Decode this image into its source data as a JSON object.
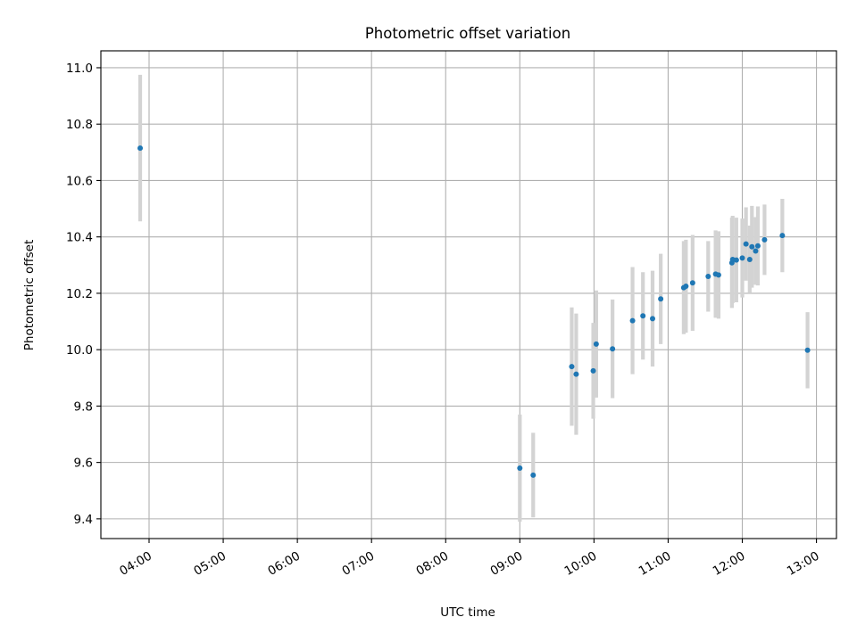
{
  "chart_data": {
    "type": "scatter",
    "title": "Photometric offset variation",
    "xlabel": "UTC time",
    "ylabel": "Photometric offset",
    "grid": true,
    "x_unit": "hours UTC",
    "xlim": [
      3.35,
      13.27
    ],
    "ylim": [
      9.33,
      11.06
    ],
    "xticks": [
      4,
      5,
      6,
      7,
      8,
      9,
      10,
      11,
      12,
      13
    ],
    "xtick_labels": [
      "04:00",
      "05:00",
      "06:00",
      "07:00",
      "08:00",
      "09:00",
      "10:00",
      "11:00",
      "12:00",
      "13:00"
    ],
    "yticks": [
      9.4,
      9.6,
      9.8,
      10.0,
      10.2,
      10.4,
      10.6,
      10.8,
      11.0
    ],
    "ytick_labels": [
      "9.4",
      "9.6",
      "9.8",
      "10.0",
      "10.2",
      "10.4",
      "10.6",
      "10.8",
      "11.0"
    ],
    "colors": {
      "point": "#1f77b4",
      "errorbar": "#d3d3d3",
      "grid": "#b0b0b0",
      "axis": "#000000"
    },
    "series": [
      {
        "name": "Photometric offset",
        "points": [
          {
            "x": 3.88,
            "y": 10.715,
            "err": 0.26
          },
          {
            "x": 9.0,
            "y": 9.58,
            "err": 0.19
          },
          {
            "x": 9.18,
            "y": 9.555,
            "err": 0.15
          },
          {
            "x": 9.7,
            "y": 9.94,
            "err": 0.21
          },
          {
            "x": 9.76,
            "y": 9.913,
            "err": 0.215
          },
          {
            "x": 9.99,
            "y": 9.925,
            "err": 0.17
          },
          {
            "x": 10.03,
            "y": 10.02,
            "err": 0.19
          },
          {
            "x": 10.25,
            "y": 10.003,
            "err": 0.175
          },
          {
            "x": 10.52,
            "y": 10.103,
            "err": 0.19
          },
          {
            "x": 10.66,
            "y": 10.12,
            "err": 0.155
          },
          {
            "x": 10.79,
            "y": 10.11,
            "err": 0.17
          },
          {
            "x": 10.9,
            "y": 10.18,
            "err": 0.16
          },
          {
            "x": 11.21,
            "y": 10.22,
            "err": 0.165
          },
          {
            "x": 11.24,
            "y": 10.225,
            "err": 0.165
          },
          {
            "x": 11.33,
            "y": 10.237,
            "err": 0.17
          },
          {
            "x": 11.54,
            "y": 10.26,
            "err": 0.125
          },
          {
            "x": 11.64,
            "y": 10.268,
            "err": 0.155
          },
          {
            "x": 11.68,
            "y": 10.265,
            "err": 0.155
          },
          {
            "x": 11.86,
            "y": 10.308,
            "err": 0.16
          },
          {
            "x": 11.87,
            "y": 10.32,
            "err": 0.155
          },
          {
            "x": 11.92,
            "y": 10.318,
            "err": 0.15
          },
          {
            "x": 12.0,
            "y": 10.325,
            "err": 0.14
          },
          {
            "x": 12.05,
            "y": 10.375,
            "err": 0.13
          },
          {
            "x": 12.1,
            "y": 10.32,
            "err": 0.12
          },
          {
            "x": 12.13,
            "y": 10.365,
            "err": 0.145
          },
          {
            "x": 12.18,
            "y": 10.35,
            "err": 0.12
          },
          {
            "x": 12.21,
            "y": 10.368,
            "err": 0.14
          },
          {
            "x": 12.3,
            "y": 10.39,
            "err": 0.125
          },
          {
            "x": 12.54,
            "y": 10.405,
            "err": 0.13
          },
          {
            "x": 12.88,
            "y": 9.998,
            "err": 0.135
          }
        ]
      }
    ]
  }
}
